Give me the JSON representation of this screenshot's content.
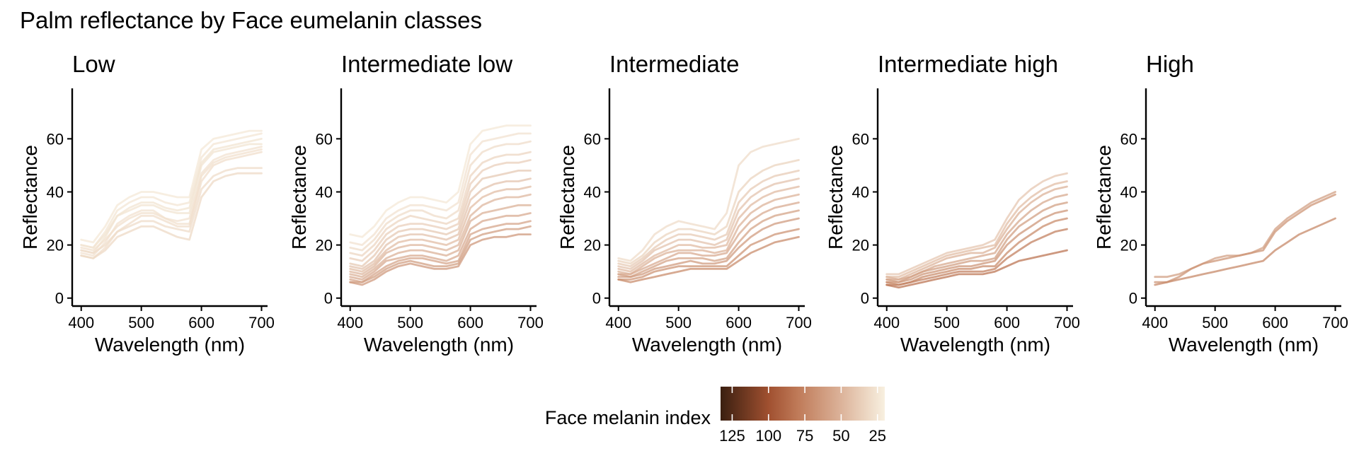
{
  "chart_data": {
    "type": "line",
    "title": "Palm reflectance by Face eumelanin classes",
    "xlabel": "Wavelength (nm)",
    "ylabel": "Reflectance",
    "xlim": [
      385,
      710
    ],
    "ylim": [
      -3,
      79
    ],
    "x_ticks": [
      400,
      500,
      600,
      700
    ],
    "y_ticks": [
      0,
      20,
      40,
      60
    ],
    "wavelengths": [
      400,
      420,
      440,
      460,
      480,
      500,
      520,
      540,
      560,
      580,
      600,
      620,
      640,
      660,
      680,
      700
    ],
    "color_scale": {
      "title": "Face melanin index",
      "min": 20,
      "max": 133,
      "ticks": [
        125,
        100,
        75,
        50,
        25
      ],
      "stops": [
        {
          "value": 20,
          "color": "#f8f0e0"
        },
        {
          "value": 50,
          "color": "#dcb39a"
        },
        {
          "value": 80,
          "color": "#bf7a58"
        },
        {
          "value": 100,
          "color": "#a05030"
        },
        {
          "value": 133,
          "color": "#3a1f10"
        }
      ]
    },
    "panels": [
      {
        "title": "Low",
        "series": [
          {
            "melanin": 24,
            "values": [
              22,
              21,
              27,
              35,
              38,
              40,
              40,
              39,
              38,
              38,
              56,
              60,
              61,
              62,
              63,
              63
            ]
          },
          {
            "melanin": 25,
            "values": [
              20,
              19,
              25,
              33,
              36,
              38,
              38,
              36,
              35,
              36,
              53,
              58,
              59,
              60,
              61,
              62
            ]
          },
          {
            "melanin": 26,
            "values": [
              18,
              17,
              23,
              31,
              34,
              36,
              36,
              34,
              33,
              34,
              51,
              56,
              57,
              58,
              59,
              60
            ]
          },
          {
            "melanin": 26,
            "values": [
              20,
              19,
              24,
              31,
              33,
              35,
              35,
              33,
              32,
              32,
              50,
              55,
              56,
              57,
              58,
              58
            ]
          },
          {
            "melanin": 27,
            "values": [
              17,
              16,
              21,
              28,
              31,
              33,
              33,
              30,
              29,
              30,
              47,
              52,
              54,
              55,
              56,
              57
            ]
          },
          {
            "melanin": 28,
            "values": [
              19,
              18,
              22,
              27,
              30,
              32,
              32,
              30,
              28,
              28,
              46,
              51,
              53,
              54,
              55,
              56
            ]
          },
          {
            "melanin": 29,
            "values": [
              16,
              15,
              19,
              25,
              28,
              31,
              31,
              29,
              27,
              27,
              44,
              50,
              52,
              53,
              54,
              55
            ]
          },
          {
            "melanin": 30,
            "values": [
              18,
              17,
              20,
              25,
              27,
              29,
              29,
              27,
              26,
              25,
              41,
              46,
              48,
              49,
              49,
              49
            ]
          },
          {
            "melanin": 31,
            "values": [
              16,
              15,
              18,
              23,
              25,
              27,
              27,
              25,
              23,
              22,
              38,
              44,
              46,
              47,
              47,
              47
            ]
          }
        ]
      },
      {
        "title": "Intermediate low",
        "series": [
          {
            "melanin": 24,
            "values": [
              24,
              23,
              27,
              33,
              36,
              38,
              38,
              37,
              36,
              40,
              58,
              63,
              64,
              65,
              65,
              65
            ]
          },
          {
            "melanin": 27,
            "values": [
              21,
              20,
              24,
              30,
              33,
              35,
              35,
              34,
              33,
              36,
              54,
              59,
              60,
              61,
              62,
              62
            ]
          },
          {
            "melanin": 30,
            "values": [
              19,
              18,
              22,
              28,
              31,
              33,
              33,
              31,
              30,
              33,
              50,
              55,
              57,
              58,
              58,
              59
            ]
          },
          {
            "melanin": 33,
            "values": [
              17,
              16,
              20,
              26,
              29,
              31,
              30,
              29,
              28,
              30,
              46,
              51,
              53,
              54,
              54,
              55
            ]
          },
          {
            "melanin": 36,
            "values": [
              15,
              14,
              18,
              24,
              27,
              28,
              28,
              27,
              26,
              28,
              43,
              48,
              50,
              51,
              51,
              52
            ]
          },
          {
            "melanin": 39,
            "values": [
              13,
              12,
              16,
              22,
              25,
              26,
              26,
              25,
              24,
              26,
              40,
              45,
              46,
              47,
              48,
              48
            ]
          },
          {
            "melanin": 42,
            "values": [
              12,
              11,
              14,
              20,
              23,
              24,
              24,
              23,
              22,
              24,
              37,
              41,
              43,
              44,
              44,
              45
            ]
          },
          {
            "melanin": 45,
            "values": [
              11,
              10,
              13,
              18,
              21,
              22,
              22,
              21,
              20,
              22,
              34,
              38,
              40,
              41,
              41,
              42
            ]
          },
          {
            "melanin": 48,
            "values": [
              10,
              9,
              12,
              17,
              19,
              20,
              20,
              19,
              18,
              20,
              31,
              35,
              37,
              38,
              38,
              39
            ]
          },
          {
            "melanin": 51,
            "values": [
              9,
              8,
              11,
              15,
              17,
              18,
              18,
              17,
              16,
              18,
              29,
              32,
              33,
              34,
              35,
              35
            ]
          },
          {
            "melanin": 54,
            "values": [
              8,
              7,
              10,
              14,
              15,
              16,
              16,
              15,
              14,
              16,
              26,
              29,
              30,
              31,
              31,
              32
            ]
          },
          {
            "melanin": 57,
            "values": [
              7,
              6,
              9,
              12,
              14,
              15,
              15,
              14,
              13,
              14,
              24,
              26,
              27,
              28,
              28,
              29
            ]
          },
          {
            "melanin": 60,
            "values": [
              6,
              6,
              8,
              11,
              13,
              14,
              13,
              12,
              12,
              13,
              22,
              24,
              25,
              26,
              26,
              27
            ]
          },
          {
            "melanin": 63,
            "values": [
              6,
              5,
              7,
              10,
              12,
              13,
              12,
              11,
              11,
              12,
              20,
              22,
              23,
              23,
              24,
              24
            ]
          }
        ]
      },
      {
        "title": "Intermediate",
        "series": [
          {
            "melanin": 30,
            "values": [
              15,
              14,
              18,
              24,
              27,
              29,
              28,
              27,
              26,
              32,
              50,
              55,
              57,
              58,
              59,
              60
            ]
          },
          {
            "melanin": 34,
            "values": [
              14,
              13,
              16,
              21,
              24,
              26,
              26,
              25,
              24,
              27,
              40,
              45,
              48,
              50,
              51,
              52
            ]
          },
          {
            "melanin": 38,
            "values": [
              13,
              12,
              15,
              19,
              22,
              24,
              24,
              23,
              22,
              24,
              36,
              41,
              44,
              46,
              47,
              48
            ]
          },
          {
            "melanin": 42,
            "values": [
              12,
              11,
              14,
              18,
              20,
              22,
              22,
              21,
              20,
              22,
              33,
              38,
              41,
              43,
              44,
              45
            ]
          },
          {
            "melanin": 46,
            "values": [
              11,
              10,
              13,
              16,
              18,
              20,
              20,
              19,
              19,
              20,
              30,
              35,
              38,
              40,
              41,
              42
            ]
          },
          {
            "melanin": 50,
            "values": [
              10,
              9,
              12,
              15,
              17,
              18,
              18,
              18,
              17,
              18,
              27,
              32,
              35,
              37,
              38,
              39
            ]
          },
          {
            "melanin": 54,
            "values": [
              9,
              9,
              11,
              13,
              15,
              17,
              17,
              16,
              16,
              17,
              24,
              29,
              32,
              34,
              35,
              36
            ]
          },
          {
            "melanin": 58,
            "values": [
              9,
              8,
              10,
              12,
              14,
              15,
              15,
              15,
              14,
              15,
              21,
              26,
              29,
              31,
              32,
              33
            ]
          },
          {
            "melanin": 62,
            "values": [
              8,
              8,
              9,
              11,
              12,
              13,
              14,
              13,
              13,
              14,
              19,
              23,
              26,
              28,
              29,
              30
            ]
          },
          {
            "melanin": 66,
            "values": [
              7,
              7,
              8,
              10,
              11,
              12,
              12,
              12,
              12,
              12,
              16,
              20,
              22,
              24,
              25,
              26
            ]
          },
          {
            "melanin": 70,
            "values": [
              7,
              6,
              7,
              8,
              9,
              10,
              11,
              11,
              11,
              11,
              14,
              17,
              19,
              21,
              22,
              23
            ]
          }
        ]
      },
      {
        "title": "Intermediate high",
        "series": [
          {
            "melanin": 40,
            "values": [
              9,
              9,
              11,
              13,
              15,
              17,
              18,
              19,
              20,
              22,
              30,
              37,
              41,
              44,
              46,
              47
            ]
          },
          {
            "melanin": 45,
            "values": [
              8,
              8,
              10,
              12,
              14,
              16,
              17,
              18,
              19,
              20,
              28,
              34,
              38,
              41,
              43,
              44
            ]
          },
          {
            "melanin": 50,
            "values": [
              8,
              7,
              9,
              11,
              13,
              15,
              16,
              17,
              17,
              19,
              26,
              32,
              36,
              39,
              41,
              42
            ]
          },
          {
            "melanin": 55,
            "values": [
              7,
              7,
              8,
              10,
              12,
              13,
              14,
              15,
              16,
              17,
              24,
              29,
              33,
              36,
              38,
              39
            ]
          },
          {
            "melanin": 60,
            "values": [
              7,
              6,
              8,
              10,
              11,
              12,
              13,
              14,
              14,
              15,
              22,
              27,
              30,
              33,
              35,
              36
            ]
          },
          {
            "melanin": 65,
            "values": [
              6,
              6,
              7,
              9,
              10,
              11,
              12,
              12,
              13,
              14,
              20,
              24,
              27,
              30,
              32,
              33
            ]
          },
          {
            "melanin": 70,
            "values": [
              6,
              5,
              6,
              8,
              9,
              10,
              11,
              11,
              12,
              12,
              17,
              21,
              24,
              27,
              29,
              30
            ]
          },
          {
            "melanin": 76,
            "values": [
              5,
              5,
              6,
              7,
              8,
              9,
              10,
              10,
              10,
              11,
              15,
              18,
              21,
              23,
              25,
              26
            ]
          },
          {
            "melanin": 82,
            "values": [
              5,
              4,
              5,
              6,
              7,
              8,
              9,
              9,
              9,
              10,
              12,
              14,
              15,
              16,
              17,
              18
            ]
          }
        ]
      },
      {
        "title": "High",
        "series": [
          {
            "melanin": 60,
            "values": [
              8,
              8,
              9,
              11,
              13,
              15,
              16,
              16,
              17,
              19,
              26,
              30,
              33,
              36,
              38,
              40
            ]
          },
          {
            "melanin": 66,
            "values": [
              6,
              6,
              8,
              11,
              13,
              14,
              15,
              16,
              17,
              18,
              25,
              29,
              32,
              35,
              37,
              39
            ]
          },
          {
            "melanin": 72,
            "values": [
              5,
              6,
              7,
              8,
              9,
              10,
              11,
              12,
              13,
              14,
              18,
              21,
              24,
              26,
              28,
              30
            ]
          }
        ]
      }
    ]
  }
}
